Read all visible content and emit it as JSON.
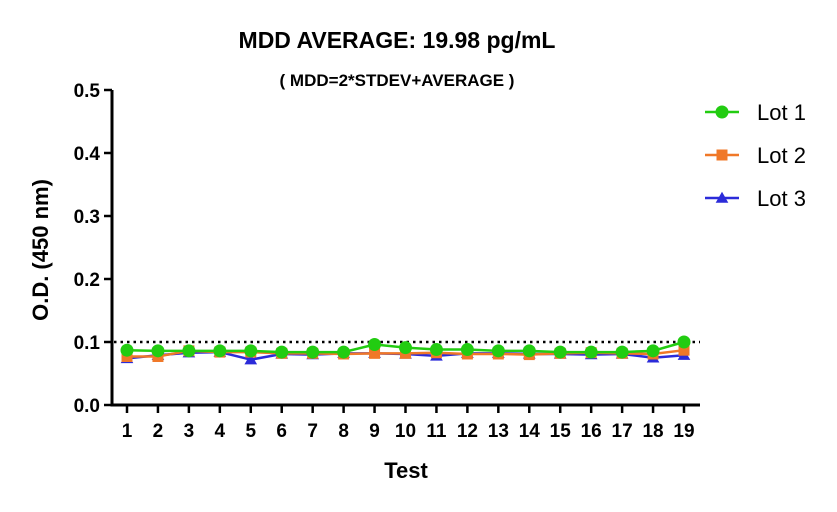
{
  "chart_data": {
    "type": "line",
    "title": "MDD AVERAGE:  19.98 pg/mL",
    "subtitle": "( MDD=2*STDEV+AVERAGE )",
    "xlabel": "Test",
    "ylabel": "O.D. (450 nm)",
    "categories": [
      "1",
      "2",
      "3",
      "4",
      "5",
      "6",
      "7",
      "8",
      "9",
      "10",
      "11",
      "12",
      "13",
      "14",
      "15",
      "16",
      "17",
      "18",
      "19"
    ],
    "ylim": [
      0,
      0.5
    ],
    "yticks": [
      "0.0",
      "0.1",
      "0.2",
      "0.3",
      "0.4",
      "0.5"
    ],
    "reference_line": {
      "y": 0.1,
      "style": "dotted"
    },
    "grid": false,
    "legend_position": "top-right",
    "series": [
      {
        "name": "Lot 1",
        "color": "#22cc11",
        "marker": "circle",
        "values": [
          0.087,
          0.086,
          0.086,
          0.086,
          0.086,
          0.084,
          0.084,
          0.084,
          0.096,
          0.091,
          0.088,
          0.088,
          0.086,
          0.086,
          0.084,
          0.084,
          0.084,
          0.086,
          0.1
        ]
      },
      {
        "name": "Lot 2",
        "color": "#f07828",
        "marker": "square",
        "values": [
          0.077,
          0.077,
          0.086,
          0.084,
          0.084,
          0.082,
          0.082,
          0.081,
          0.082,
          0.082,
          0.083,
          0.081,
          0.081,
          0.08,
          0.082,
          0.083,
          0.082,
          0.081,
          0.087
        ]
      },
      {
        "name": "Lot 3",
        "color": "#2b2bd9",
        "marker": "triangle",
        "values": [
          0.074,
          0.079,
          0.083,
          0.084,
          0.072,
          0.081,
          0.08,
          0.082,
          0.082,
          0.081,
          0.078,
          0.082,
          0.082,
          0.081,
          0.081,
          0.08,
          0.081,
          0.075,
          0.079
        ]
      }
    ]
  }
}
